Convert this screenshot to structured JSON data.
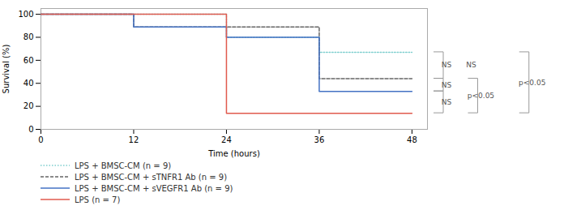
{
  "chart_data": {
    "type": "step",
    "xlabel": "Time (hours)",
    "ylabel": "Survival (%)",
    "xlim": [
      0,
      50
    ],
    "ylim": [
      0,
      105
    ],
    "xticks": [
      0,
      12,
      24,
      36,
      48
    ],
    "yticks": [
      0,
      20,
      40,
      60,
      80,
      100
    ],
    "legend": "bottom",
    "series": [
      {
        "name": "LPS + BMSC-CM (n = 9)",
        "color": "#7ecece",
        "line_style": "dotted",
        "x": [
          0,
          24,
          36,
          48
        ],
        "values": [
          100,
          80,
          67,
          67
        ]
      },
      {
        "name": "LPS + BMSC-CM + sTNFR1 Ab (n = 9)",
        "color": "#666666",
        "line_style": "dashed",
        "x": [
          0,
          12,
          24,
          36,
          48
        ],
        "values": [
          100,
          89,
          89,
          44,
          44
        ]
      },
      {
        "name": "LPS + BMSC-CM + sVEGFR1 Ab (n = 9)",
        "color": "#4472c4",
        "line_style": "solid",
        "x": [
          0,
          12,
          24,
          36,
          48
        ],
        "values": [
          100,
          89,
          80,
          33,
          33
        ]
      },
      {
        "name": "LPS (n = 7)",
        "color": "#e05a4e",
        "line_style": "solid",
        "x": [
          0,
          24,
          36,
          48
        ],
        "values": [
          100,
          14,
          14,
          14
        ]
      }
    ],
    "annotations": [
      [
        {
          "text": "NS",
          "y": [
            44,
            67
          ],
          "bracket": true
        },
        {
          "text": "NS",
          "y": [
            33,
            44
          ],
          "bracket": true
        },
        {
          "text": "NS",
          "y": [
            14,
            33
          ],
          "bracket": true
        }
      ],
      [
        {
          "text": "NS",
          "y": [
            44,
            67
          ],
          "bracket": false
        },
        {
          "text": "p<0.05",
          "y": [
            14,
            44
          ],
          "bracket": true
        }
      ],
      [
        {
          "text": "p<0.05",
          "y": [
            14,
            67
          ],
          "bracket": true
        }
      ]
    ]
  }
}
